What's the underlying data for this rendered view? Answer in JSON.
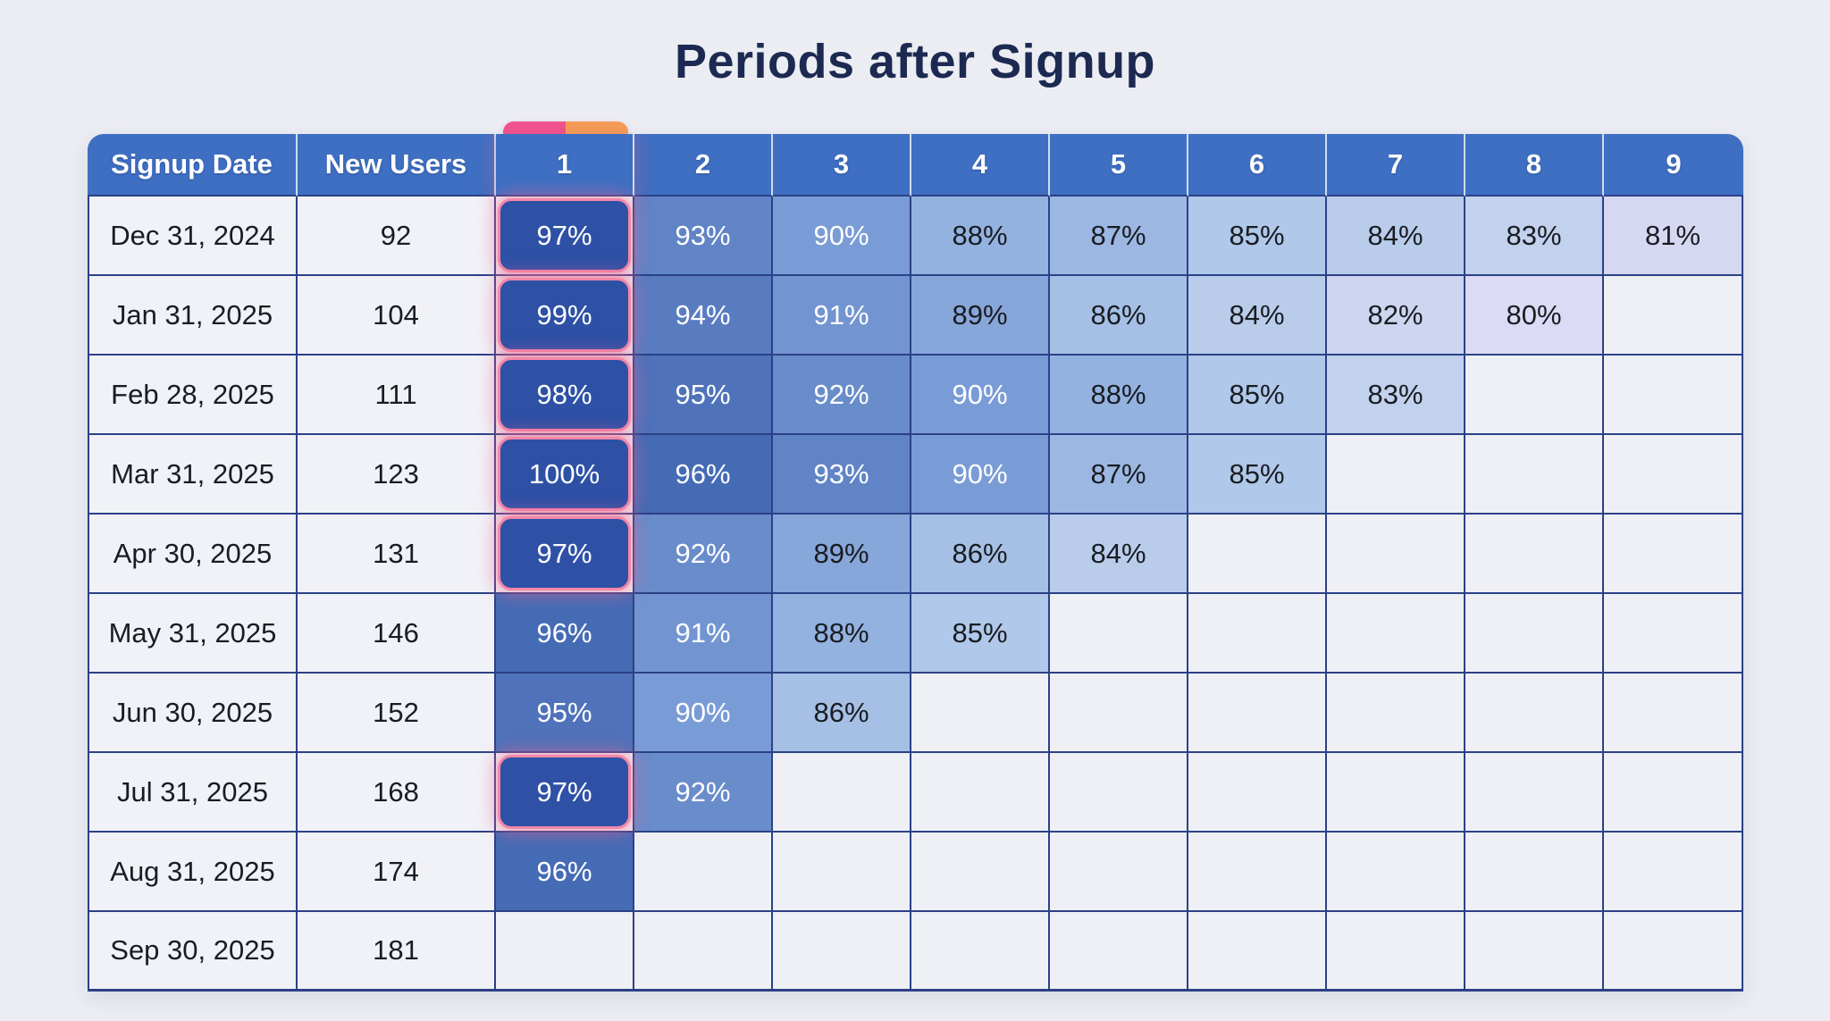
{
  "theme": {
    "page_bg": "#ecedf3",
    "title_color": "#1c2a52",
    "header_bg": "#3e6fc2",
    "header_text": "#ffffff",
    "header_divider": "rgba(255,255,255,0.75)",
    "grid_border": "#2b4187",
    "light_cell_bg": "#f1f2f7",
    "empty_cell_bg": "#eef0f5",
    "cell_text_dark": "#191c22",
    "cell_text_light": "#ffffff",
    "highlight_fill": "#2e51a6",
    "highlight_border": "#f487a8",
    "highlight_glow": "rgba(241,98,143,0.5)",
    "tab_pink": "#f0538d",
    "tab_orange": "#f59b58"
  },
  "chart_data": {
    "type": "heatmap",
    "title": "Periods after Signup",
    "columns": [
      "Signup Date",
      "New Users",
      "1",
      "2",
      "3",
      "4",
      "5",
      "6",
      "7",
      "8",
      "9"
    ],
    "rows": [
      {
        "signup_date": "Dec 31, 2024",
        "new_users": "92",
        "retention_pct": [
          97,
          93,
          90,
          88,
          87,
          85,
          84,
          83,
          81
        ]
      },
      {
        "signup_date": "Jan 31, 2025",
        "new_users": "104",
        "retention_pct": [
          99,
          94,
          91,
          89,
          86,
          84,
          82,
          80,
          null
        ]
      },
      {
        "signup_date": "Feb 28, 2025",
        "new_users": "111",
        "retention_pct": [
          98,
          95,
          92,
          90,
          88,
          85,
          83,
          null,
          null
        ]
      },
      {
        "signup_date": "Mar 31, 2025",
        "new_users": "123",
        "retention_pct": [
          100,
          96,
          93,
          90,
          87,
          85,
          null,
          null,
          null
        ]
      },
      {
        "signup_date": "Apr 30, 2025",
        "new_users": "131",
        "retention_pct": [
          97,
          92,
          89,
          86,
          84,
          null,
          null,
          null,
          null
        ]
      },
      {
        "signup_date": "May 31, 2025",
        "new_users": "146",
        "retention_pct": [
          96,
          91,
          88,
          85,
          null,
          null,
          null,
          null,
          null
        ]
      },
      {
        "signup_date": "Jun 30, 2025",
        "new_users": "152",
        "retention_pct": [
          95,
          90,
          86,
          null,
          null,
          null,
          null,
          null,
          null
        ]
      },
      {
        "signup_date": "Jul 31, 2025",
        "new_users": "168",
        "retention_pct": [
          97,
          92,
          null,
          null,
          null,
          null,
          null,
          null,
          null
        ]
      },
      {
        "signup_date": "Aug 31, 2025",
        "new_users": "174",
        "retention_pct": [
          96,
          null,
          null,
          null,
          null,
          null,
          null,
          null,
          null
        ]
      },
      {
        "signup_date": "Sep 30, 2025",
        "new_users": "181",
        "retention_pct": [
          null,
          null,
          null,
          null,
          null,
          null,
          null,
          null,
          null
        ]
      }
    ],
    "value_suffix": "%",
    "white_text_min": 90,
    "highlight_rule": {
      "period": 1,
      "min_value": 97
    },
    "selected_column_tab": {
      "column": "1",
      "segment_colors": [
        "#f0538d",
        "#f59b58"
      ]
    },
    "palette": {
      "80": "#dcdaf4",
      "81": "#d6d8f2",
      "82": "#cdd5f0",
      "83": "#c2d1ed",
      "84": "#b9cdeb",
      "85": "#b0c8e9",
      "86": "#a6c0e5",
      "87": "#9cb8e2",
      "88": "#93b2e0",
      "89": "#87a6da",
      "90": "#7a9cd6",
      "91": "#7295d1",
      "92": "#698cca",
      "93": "#6184c6",
      "94": "#597cc1",
      "95": "#4f72ba",
      "96": "#466bb5",
      "97": "#3d63b0",
      "98": "#3a5dab",
      "99": "#3557a7",
      "100": "#2e4fa4"
    },
    "legend_position": "none",
    "grid": true
  }
}
